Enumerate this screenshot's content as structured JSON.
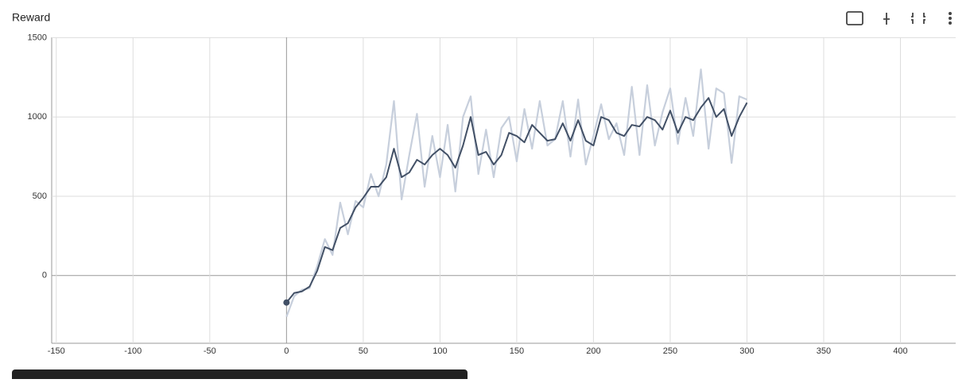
{
  "chart_data": {
    "type": "line",
    "title": "Reward",
    "x": [
      0,
      5,
      10,
      15,
      20,
      25,
      30,
      35,
      40,
      45,
      50,
      55,
      60,
      65,
      70,
      75,
      80,
      85,
      90,
      95,
      100,
      105,
      110,
      115,
      120,
      125,
      130,
      135,
      140,
      145,
      150,
      155,
      160,
      165,
      170,
      175,
      180,
      185,
      190,
      195,
      200,
      205,
      210,
      215,
      220,
      225,
      230,
      235,
      240,
      245,
      250,
      255,
      260,
      265,
      270,
      275,
      280,
      285,
      290,
      295,
      300
    ],
    "series": [
      {
        "color": "#c7cfdc",
        "values": [
          -260,
          -130,
          -90,
          -80,
          60,
          230,
          130,
          460,
          260,
          470,
          430,
          640,
          500,
          700,
          1100,
          480,
          760,
          1020,
          560,
          880,
          620,
          950,
          530,
          1000,
          1130,
          640,
          920,
          620,
          930,
          1000,
          720,
          1050,
          800,
          1100,
          820,
          860,
          1100,
          750,
          1110,
          700,
          880,
          1080,
          860,
          960,
          760,
          1190,
          760,
          1200,
          820,
          1030,
          1180,
          830,
          1120,
          880,
          1300,
          800,
          1180,
          1150,
          710,
          1130,
          1110
        ]
      },
      {
        "color": "#425066",
        "values": [
          -170,
          -110,
          -100,
          -70,
          30,
          180,
          160,
          300,
          330,
          430,
          490,
          560,
          560,
          620,
          800,
          620,
          650,
          730,
          700,
          760,
          800,
          760,
          680,
          820,
          1000,
          760,
          780,
          700,
          760,
          900,
          880,
          840,
          950,
          900,
          850,
          860,
          960,
          850,
          980,
          850,
          820,
          1000,
          980,
          900,
          880,
          950,
          940,
          1000,
          980,
          920,
          1040,
          900,
          1000,
          980,
          1060,
          1120,
          1000,
          1050,
          880,
          1000,
          1090
        ]
      }
    ],
    "xlim": [
      -153,
      436
    ],
    "xticks": [
      -150,
      -100,
      -50,
      0,
      50,
      100,
      150,
      200,
      250,
      300,
      350,
      400
    ],
    "ylim": [
      -427,
      1502
    ],
    "yticks": [
      0,
      500,
      1000,
      1500
    ],
    "grid": true
  }
}
